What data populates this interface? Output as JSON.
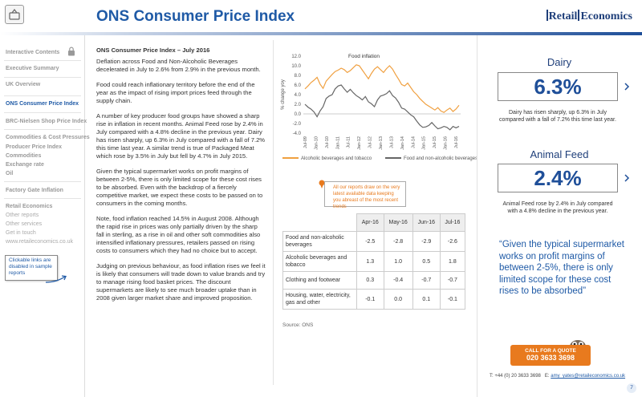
{
  "header": {
    "title": "ONS Consumer Price Index",
    "logo_left": "Retail",
    "logo_right": "Economics"
  },
  "sidebar": {
    "items": [
      {
        "label": "Interactive Contents",
        "style": "bold"
      },
      {
        "label": "Executive Summary",
        "style": "bold"
      },
      {
        "label": "UK Overview",
        "style": "bold"
      },
      {
        "label": "ONS Consumer Price Index",
        "style": "active"
      },
      {
        "label": "BRC-Nielsen Shop Price Index",
        "style": "bold"
      },
      {
        "label": "Commodities & Cost Pressures",
        "style": "bold"
      },
      {
        "label": "Producer Price Index",
        "style": "bold"
      },
      {
        "label": "Commodities",
        "style": "bold"
      },
      {
        "label": "Exchange rate",
        "style": "bold"
      },
      {
        "label": "Oil",
        "style": "bold"
      },
      {
        "label": "Factory Gate Inflation",
        "style": "bold"
      },
      {
        "label": "Retail Economics",
        "style": "bold"
      },
      {
        "label": "Other reports",
        "style": "normal"
      },
      {
        "label": "Other services",
        "style": "normal"
      },
      {
        "label": "Get in touch",
        "style": "normal"
      },
      {
        "label": "www.retaileconomics.co.uk",
        "style": "normal"
      }
    ],
    "note": "Clickable links are disabled in sample reports"
  },
  "content": {
    "subhead": "ONS Consumer Price Index – July 2016",
    "paragraphs": [
      "Deflation across Food and Non-Alcoholic Beverages decelerated in July to 2.6% from 2.9% in the previous month.",
      "Food could reach inflationary territory before the end of the year as the impact of rising import prices feed through the supply chain.",
      "A number of key producer food groups have showed a sharp rise in inflation in recent months. Animal Feed rose by 2.4% in July compared with a 4.8% decline in the previous year. Dairy has risen sharply, up 6.3% in July compared with a fall of 7.2% this time last year. A similar trend is true of Packaged Meat which rose by 3.5% in July but fell by 4.7% in July 2015.",
      "Given the typical supermarket works on profit margins of between 2-5%, there is only limited scope for these cost rises to be absorbed. Even with the backdrop of a fiercely competitive market, we expect these costs to be passed on to consumers in the coming months.",
      "Note, food inflation reached 14.5% in August 2008. Although the rapid rise in prices was only partially driven by the sharp fall in sterling, as a rise in oil and other soft commodities also intensified inflationary pressures, retailers passed on rising costs to consumers which they had no choice but to accept.",
      "Judging on previous behaviour, as food inflation rises we feel it is likely that consumers will trade down to value brands and try to manage rising food basket prices. The discount supermarkets are likely to see much broader uptake than in 2008 given larger market share and improved proposition."
    ]
  },
  "chart_data": {
    "type": "line",
    "title": "Food inflation",
    "ylabel": "% change yoy",
    "ylim": [
      -4.0,
      12.0
    ],
    "yticks": [
      "12.0",
      "10.0",
      "8.0",
      "6.0",
      "4.0",
      "2.0",
      "0.0",
      "-2.0",
      "-4.0"
    ],
    "xticks": [
      "Jul-09",
      "Jan-10",
      "Jul-10",
      "Jan-11",
      "Jul-11",
      "Jan-12",
      "Jul-12",
      "Jan-13",
      "Jul-13",
      "Jan-14",
      "Jul-14",
      "Jan-15",
      "Jul-15",
      "Jan-16",
      "Jul-16"
    ],
    "series": [
      {
        "name": "Alcoholic beverages and tobacco",
        "color": "#f0a040",
        "values": [
          5.2,
          5.8,
          6.5,
          7.0,
          7.6,
          6.2,
          5.3,
          6.8,
          7.5,
          8.2,
          8.8,
          9.1,
          9.5,
          9.2,
          8.6,
          9.0,
          9.6,
          10.2,
          10.0,
          9.1,
          8.2,
          7.3,
          8.4,
          9.3,
          9.8,
          9.2,
          8.6,
          9.4,
          10.0,
          9.3,
          8.2,
          7.2,
          6.1,
          5.8,
          6.4,
          5.5,
          4.6,
          4.0,
          3.2,
          2.6,
          2.0,
          1.6,
          1.2,
          0.8,
          1.3,
          0.6,
          0.3,
          0.8,
          1.2,
          0.5,
          1.0,
          1.8
        ]
      },
      {
        "name": "Food and non-alcoholic beverages",
        "color": "#666666",
        "values": [
          2.0,
          1.4,
          1.0,
          0.4,
          -0.6,
          0.6,
          1.5,
          3.2,
          3.7,
          4.0,
          5.2,
          5.8,
          6.0,
          5.2,
          4.5,
          5.1,
          4.4,
          3.8,
          3.4,
          2.9,
          3.6,
          2.5,
          2.1,
          1.5,
          2.9,
          3.7,
          3.9,
          4.2,
          4.8,
          3.8,
          3.3,
          2.4,
          1.2,
          1.0,
          0.4,
          -0.2,
          -0.6,
          -1.5,
          -2.3,
          -2.8,
          -2.7,
          -2.4,
          -1.8,
          -2.5,
          -3.1,
          -2.9,
          -2.6,
          -2.8,
          -3.3,
          -2.6,
          -2.9,
          -2.6
        ]
      }
    ]
  },
  "callout": {
    "part1": "All our reports draw on the very latest available data",
    "part2": " keeping you abreast of the most recent trends"
  },
  "table": {
    "headers": [
      "Apr-16",
      "May-16",
      "Jun-16",
      "Jul-16"
    ],
    "rows": [
      {
        "label": "Food and non-alcoholic beverages",
        "values": [
          "-2.5",
          "-2.8",
          "-2.9",
          "-2.6"
        ]
      },
      {
        "label": "Alcoholic beverages and tobacco",
        "values": [
          "1.3",
          "1.0",
          "0.5",
          "1.8"
        ]
      },
      {
        "label": "Clothing and footwear",
        "values": [
          "0.3",
          "-0.4",
          "-0.7",
          "-0.7"
        ]
      },
      {
        "label": "Housing, water, electricity, gas and other",
        "values": [
          "-0.1",
          "0.0",
          "0.1",
          "-0.1"
        ]
      }
    ],
    "source": "Source: ONS"
  },
  "stats": {
    "dairy": {
      "title": "Dairy",
      "value": "6.3%",
      "text": "Dairy has risen sharply, up 6.3% in July compared with a fall of 7.2% this time last year."
    },
    "feed": {
      "title": "Animal Feed",
      "value": "2.4%",
      "text": "Animal Feed rose by 2.4% in July compared with a 4.8% decline in the previous year."
    }
  },
  "quote": "“Given the typical supermarket works on profit margins of between 2-5%, there is only limited scope for these cost rises to be absorbed”",
  "cta": {
    "line1": "CALL FOR A QUOTE",
    "line2": "020 3633 3698"
  },
  "footer": {
    "phone": "T: +44 (0) 20 3633 3698",
    "email_label": "E:",
    "email": "amy_yates@retaileconomics.co.uk",
    "page": "7"
  }
}
